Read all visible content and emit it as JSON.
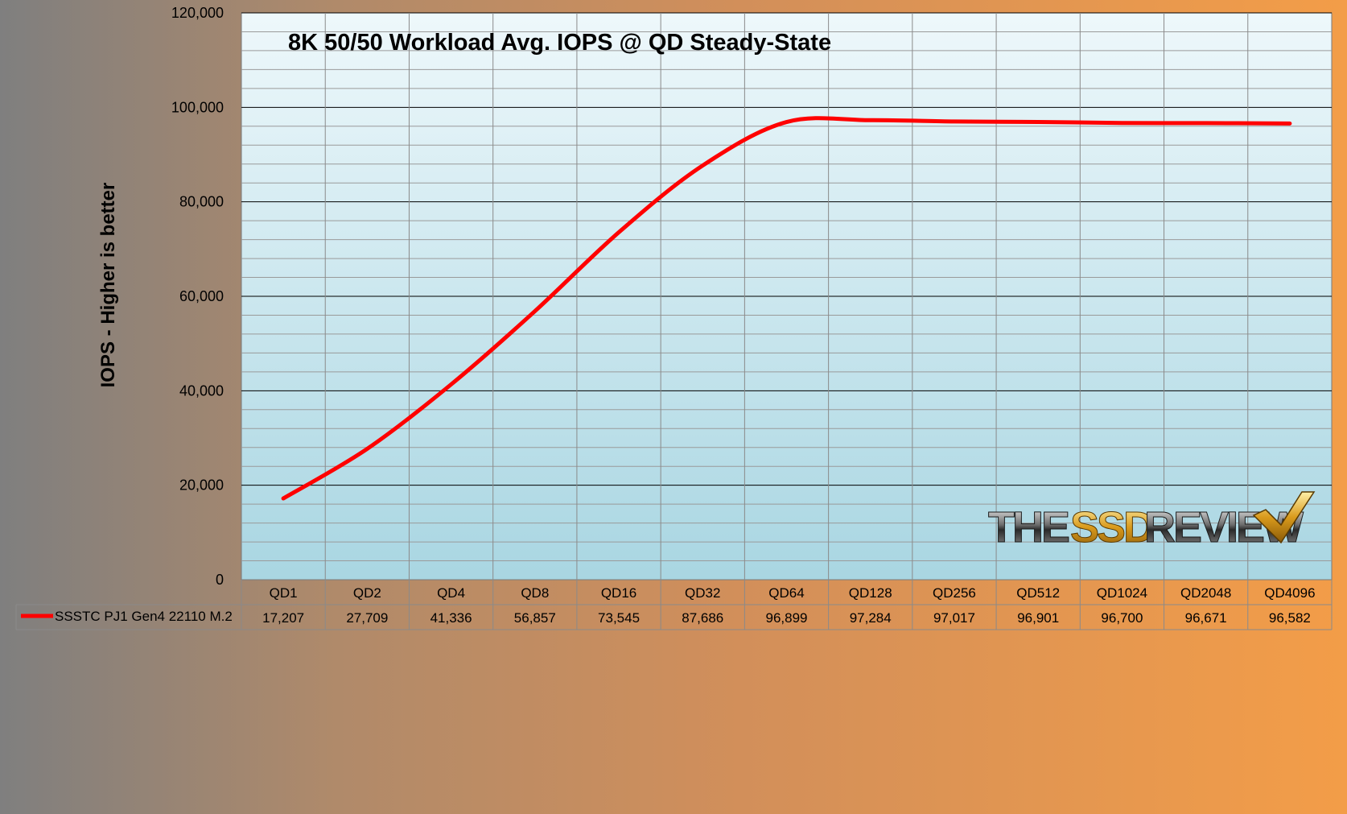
{
  "chart_data": {
    "type": "line",
    "title": "8K 50/50 Workload Avg. IOPS @ QD Steady-State",
    "ylabel": "IOPS - Higher is better",
    "xlabel": "",
    "ylim": [
      0,
      120000
    ],
    "yticks": [
      "0",
      "20,000",
      "40,000",
      "60,000",
      "80,000",
      "100,000",
      "120,000"
    ],
    "categories": [
      "QD1",
      "QD2",
      "QD4",
      "QD8",
      "QD16",
      "QD32",
      "QD64",
      "QD128",
      "QD256",
      "QD512",
      "QD1024",
      "QD2048",
      "QD4096"
    ],
    "series": [
      {
        "name": "SSSTC PJ1  Gen4 22110 M.2",
        "values": [
          17207,
          27709,
          41336,
          56857,
          73545,
          87686,
          96899,
          97284,
          97017,
          96901,
          96700,
          96671,
          96582
        ],
        "labels": [
          "17,207",
          "27,709",
          "41,336",
          "56,857",
          "73,545",
          "87,686",
          "96,899",
          "97,284",
          "97,017",
          "96,901",
          "96,700",
          "96,671",
          "96,582"
        ],
        "color": "#ff0000"
      }
    ],
    "grid": true,
    "legend": "data-table-bottom"
  },
  "watermark": {
    "text": "THESSDREVIEW"
  },
  "colors": {
    "plot_top": "#eef8fb",
    "plot_bottom": "#a9d6e2",
    "major_grid": "#000000",
    "minor_grid": "#9a9a9a"
  }
}
